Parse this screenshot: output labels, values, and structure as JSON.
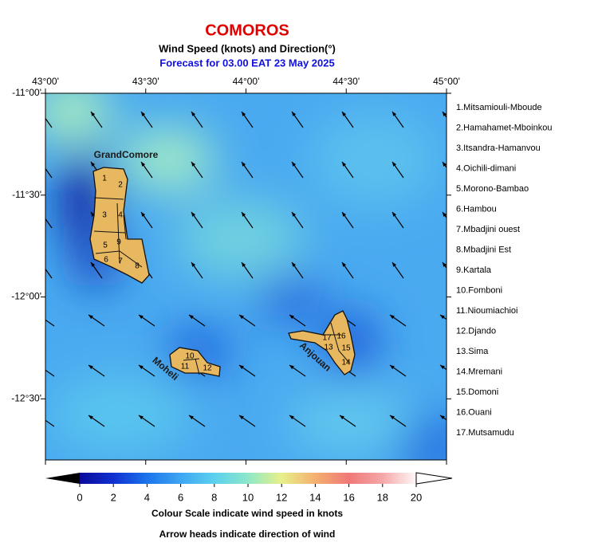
{
  "title": "COMOROS",
  "subtitle": "Wind Speed (knots) and Direction(°)",
  "forecast": "Forecast for  03.00 EAT 23 May 2025",
  "map": {
    "xlim": [
      43,
      45
    ],
    "ylim": [
      -12.8,
      -11
    ],
    "xticks": [
      {
        "value": 43,
        "label": "43°00'"
      },
      {
        "value": 43.5,
        "label": "43°30'"
      },
      {
        "value": 44,
        "label": "44°00'"
      },
      {
        "value": 44.5,
        "label": "44°30'"
      },
      {
        "value": 45,
        "label": "45°00'"
      }
    ],
    "yticks": [
      {
        "value": -11,
        "label": "-11°00'"
      },
      {
        "value": -11.5,
        "label": "-11°30'"
      },
      {
        "value": -12,
        "label": "-12°00'"
      },
      {
        "value": -12.5,
        "label": "-12°30'"
      }
    ],
    "island_names": [
      "GrandComore",
      "Moheli",
      "Anjouan"
    ],
    "region_numbers": [
      "1",
      "2",
      "3",
      "4",
      "5",
      "6",
      "7",
      "8",
      "9",
      "10",
      "11",
      "12",
      "13",
      "14",
      "15",
      "16",
      "17"
    ]
  },
  "legend": [
    "1.Mitsamiouli-Mboude",
    "2.Hamahamet-Mboinkou",
    "3.Itsandra-Hamanvou",
    "4.Oichili-dimani",
    "5.Morono-Bambao",
    "6.Hambou",
    "7.Mbadjini ouest",
    "8.Mbadjini Est",
    "9.Kartala",
    "10.Fomboni",
    "11.Nioumiachioi",
    "12.Djando",
    "13.Sima",
    "14.Mremani",
    "15.Domoni",
    "16.Ouani",
    "17.Mutsamudu"
  ],
  "colorbar": {
    "lim": [
      0,
      20
    ],
    "ticks": [
      0,
      2,
      4,
      6,
      8,
      10,
      12,
      14,
      16,
      18,
      20
    ]
  },
  "captions": [
    "Colour Scale indicate wind speed in knots",
    "Arrow heads indicate direction of wind"
  ]
}
